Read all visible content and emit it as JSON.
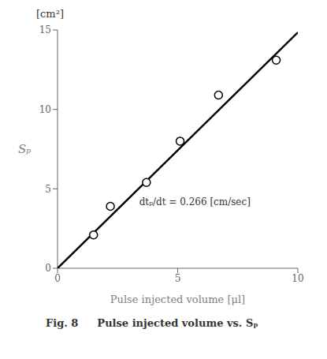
{
  "chart_data": {
    "type": "scatter",
    "xlabel": "Pulse injected volume [μl]",
    "ylabel": "Sₚ",
    "ylabel_unit": "[cm²]",
    "xlim": [
      0,
      10
    ],
    "ylim": [
      0,
      15
    ],
    "xticks": [
      0,
      5,
      10
    ],
    "yticks": [
      0,
      5,
      10,
      15
    ],
    "grid": false,
    "series": [
      {
        "type": "line",
        "color": "#000000",
        "x": [
          0,
          10
        ],
        "values": [
          0,
          14.85
        ]
      },
      {
        "type": "scatter",
        "color": "#000000",
        "marker": "open_circle",
        "x": [
          1.5,
          2.2,
          3.7,
          5.1,
          6.7,
          9.1
        ],
        "values": [
          2.1,
          3.9,
          5.4,
          8.0,
          10.9,
          13.1
        ]
      }
    ],
    "annotations": [
      {
        "text": "dtₚ/dt = 0.266 [cm/sec]",
        "x": 3.4,
        "y": 4.2
      }
    ],
    "captions": [
      "Fig. 8",
      "Pulse injected volume vs. Sₚ"
    ]
  }
}
